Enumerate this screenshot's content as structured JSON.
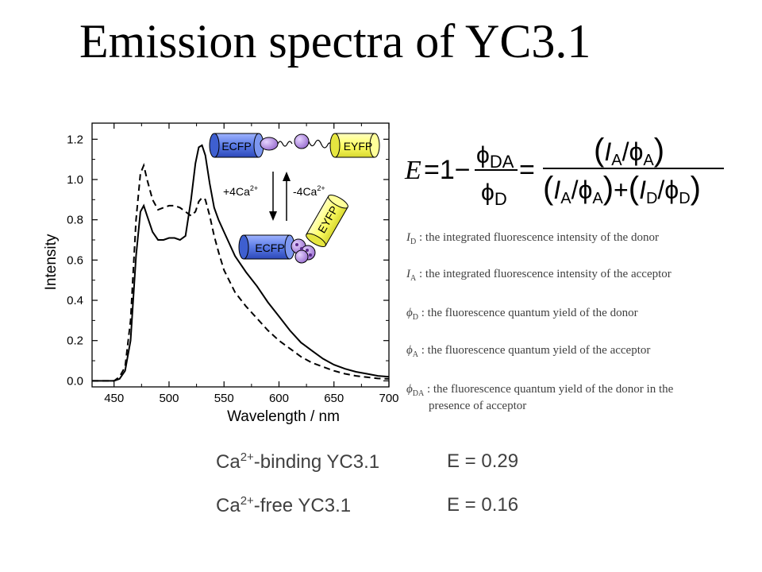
{
  "title": "Emission spectra of YC3.1",
  "chart_data": {
    "type": "line",
    "title": "",
    "xlabel": "Wavelength / nm",
    "ylabel": "Intensity",
    "xlim": [
      430,
      700
    ],
    "ylim": [
      -0.03,
      1.28
    ],
    "xticks": [
      450,
      500,
      550,
      600,
      650,
      700
    ],
    "yticks": [
      0.0,
      0.2,
      0.4,
      0.6,
      0.8,
      1.0,
      1.2
    ],
    "ytick_labels": [
      "0.0",
      "0.2",
      "0.4",
      "0.6",
      "0.8",
      "1.0",
      "1.2"
    ],
    "series": [
      {
        "style": "solid",
        "color": "#000000",
        "points": [
          [
            430,
            0.0
          ],
          [
            440,
            0.0
          ],
          [
            450,
            0.0
          ],
          [
            455,
            0.01
          ],
          [
            460,
            0.05
          ],
          [
            465,
            0.2
          ],
          [
            470,
            0.62
          ],
          [
            474,
            0.84
          ],
          [
            477,
            0.87
          ],
          [
            480,
            0.82
          ],
          [
            485,
            0.74
          ],
          [
            490,
            0.7
          ],
          [
            495,
            0.7
          ],
          [
            500,
            0.71
          ],
          [
            505,
            0.71
          ],
          [
            510,
            0.7
          ],
          [
            515,
            0.72
          ],
          [
            520,
            0.9
          ],
          [
            524,
            1.08
          ],
          [
            527,
            1.16
          ],
          [
            530,
            1.17
          ],
          [
            533,
            1.12
          ],
          [
            537,
            0.98
          ],
          [
            541,
            0.86
          ],
          [
            545,
            0.8
          ],
          [
            550,
            0.74
          ],
          [
            560,
            0.62
          ],
          [
            570,
            0.54
          ],
          [
            580,
            0.47
          ],
          [
            590,
            0.39
          ],
          [
            600,
            0.32
          ],
          [
            610,
            0.25
          ],
          [
            620,
            0.19
          ],
          [
            630,
            0.15
          ],
          [
            640,
            0.11
          ],
          [
            650,
            0.08
          ],
          [
            660,
            0.06
          ],
          [
            670,
            0.045
          ],
          [
            680,
            0.035
          ],
          [
            690,
            0.025
          ],
          [
            700,
            0.02
          ]
        ]
      },
      {
        "style": "dashed",
        "color": "#000000",
        "points": [
          [
            430,
            0.0
          ],
          [
            440,
            0.0
          ],
          [
            450,
            0.0
          ],
          [
            455,
            0.02
          ],
          [
            460,
            0.07
          ],
          [
            465,
            0.3
          ],
          [
            470,
            0.8
          ],
          [
            474,
            1.03
          ],
          [
            477,
            1.07
          ],
          [
            480,
            1.0
          ],
          [
            485,
            0.9
          ],
          [
            490,
            0.85
          ],
          [
            495,
            0.86
          ],
          [
            500,
            0.87
          ],
          [
            505,
            0.87
          ],
          [
            510,
            0.86
          ],
          [
            515,
            0.84
          ],
          [
            520,
            0.82
          ],
          [
            524,
            0.84
          ],
          [
            527,
            0.89
          ],
          [
            530,
            0.91
          ],
          [
            533,
            0.9
          ],
          [
            537,
            0.82
          ],
          [
            541,
            0.72
          ],
          [
            545,
            0.64
          ],
          [
            550,
            0.55
          ],
          [
            560,
            0.44
          ],
          [
            570,
            0.37
          ],
          [
            580,
            0.31
          ],
          [
            590,
            0.25
          ],
          [
            600,
            0.2
          ],
          [
            610,
            0.16
          ],
          [
            620,
            0.12
          ],
          [
            630,
            0.09
          ],
          [
            640,
            0.07
          ],
          [
            650,
            0.05
          ],
          [
            660,
            0.035
          ],
          [
            670,
            0.025
          ],
          [
            680,
            0.018
          ],
          [
            690,
            0.012
          ],
          [
            700,
            0.01
          ]
        ]
      }
    ]
  },
  "inset": {
    "ecfp_top": "ECFP",
    "eyfp_top": "EYFP",
    "ecfp_bottom": "ECFP",
    "eyfp_bottom": "EYFP",
    "plus_ca_text": "+4Ca",
    "minus_ca_text": "-4Ca",
    "ca_charge": "2+",
    "cfp_color": "#5b7be6",
    "yfp_color": "#ffff66",
    "cam_color": "#b58be0"
  },
  "equation": {
    "E": "E",
    "eq1": "=1−",
    "phi": "ϕ",
    "DA": "DA",
    "D": "D",
    "eq2": "=",
    "I": "I",
    "A": "A",
    "slash": "/",
    "plus": "+"
  },
  "definitions": [
    {
      "symbol": "I",
      "sub": "D",
      "text": " : the integrated fluorescence intensity of the donor"
    },
    {
      "symbol": "I",
      "sub": "A",
      "text": " : the integrated fluorescence intensity of the acceptor"
    },
    {
      "symbol": "ϕ",
      "sub": "D",
      "text": " : the fluorescence quantum yield of the donor"
    },
    {
      "symbol": "ϕ",
      "sub": "A",
      "text": " : the fluorescence quantum yield of the acceptor"
    },
    {
      "symbol": "ϕ",
      "sub": "DA",
      "text": " : the fluorescence quantum yield of the donor in the",
      "cont": "presence of acceptor"
    }
  ],
  "results": [
    {
      "label_pre": "Ca",
      "label_sup": "2+",
      "label_post": "-binding YC3.1",
      "value": "E = 0.29"
    },
    {
      "label_pre": "Ca",
      "label_sup": "2+",
      "label_post": "-free YC3.1",
      "value": "E = 0.16"
    }
  ]
}
